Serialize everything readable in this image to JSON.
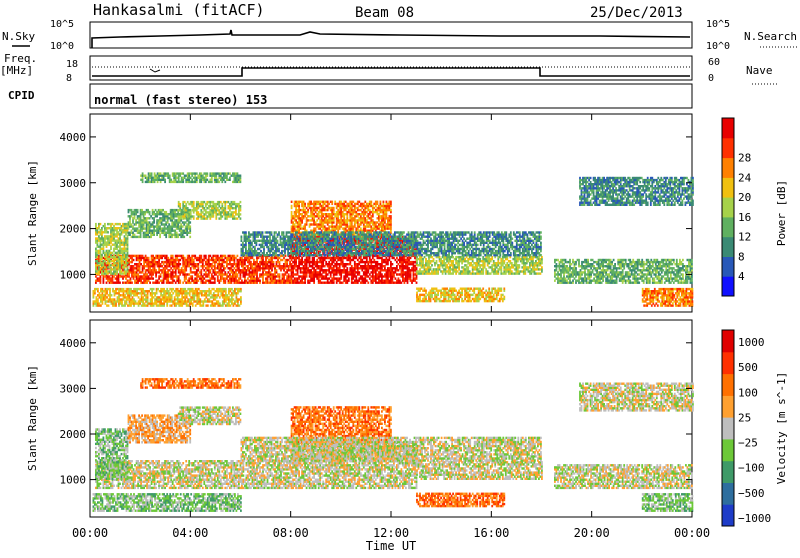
{
  "header": {
    "station": "Hankasalmi (fitACF)",
    "beam": "Beam 08",
    "date": "25/Dec/2013"
  },
  "panels": {
    "sky": {
      "left_label": "N.Sky",
      "right_label": "N.Search",
      "tick_top": "10^5",
      "tick_bottom": "10^0"
    },
    "freq": {
      "label_top": "Freq.",
      "label_unit": "[MHz]",
      "tick_top": "18",
      "tick_bottom": "8",
      "right_label": "Nave",
      "nave_top": "60",
      "nave_bottom": "0"
    },
    "cpid": {
      "label": "CPID",
      "text": "normal (fast stereo) 153"
    }
  },
  "chart_data": [
    {
      "type": "heatmap",
      "name": "power",
      "xlabel": "",
      "ylabel": "Slant Range [km]",
      "xlim": [
        0,
        24
      ],
      "ylim": [
        180,
        4500
      ],
      "x_tick_labels": [
        "00:00",
        "04:00",
        "08:00",
        "12:00",
        "16:00",
        "20:00",
        "00:00"
      ],
      "y_ticks": [
        1000,
        2000,
        3000,
        4000
      ],
      "colorbar": {
        "label": "Power [dB]",
        "ticks": [
          "4",
          "8",
          "12",
          "16",
          "20",
          "24",
          "28"
        ],
        "colors": [
          "#1010ff",
          "#2858b8",
          "#3a8a74",
          "#5fb060",
          "#a6d24a",
          "#f0c010",
          "#ff8000",
          "#ff3000",
          "#e80000"
        ]
      },
      "bands": [
        {
          "t": [
            0.2,
            8.0
          ],
          "r": [
            800,
            1400
          ],
          "level": 7
        },
        {
          "t": [
            0.2,
            1.5
          ],
          "r": [
            1000,
            2100
          ],
          "level": 4
        },
        {
          "t": [
            1.5,
            4.0
          ],
          "r": [
            1800,
            2400
          ],
          "level": 3
        },
        {
          "t": [
            3.5,
            6.0
          ],
          "r": [
            2200,
            2600
          ],
          "level": 4
        },
        {
          "t": [
            2.0,
            6.0
          ],
          "r": [
            3000,
            3200
          ],
          "level": 3
        },
        {
          "t": [
            0.1,
            6.0
          ],
          "r": [
            300,
            700
          ],
          "level": 5
        },
        {
          "t": [
            8.0,
            13.0
          ],
          "r": [
            800,
            1800
          ],
          "level": 8
        },
        {
          "t": [
            8.0,
            12.0
          ],
          "r": [
            1800,
            2600
          ],
          "level": 6
        },
        {
          "t": [
            13.0,
            18.0
          ],
          "r": [
            1000,
            1400
          ],
          "level": 4
        },
        {
          "t": [
            13.0,
            16.5
          ],
          "r": [
            400,
            700
          ],
          "level": 5
        },
        {
          "t": [
            6.0,
            18.0
          ],
          "r": [
            1400,
            1900
          ],
          "level": 2
        },
        {
          "t": [
            18.5,
            24.0
          ],
          "r": [
            800,
            1300
          ],
          "level": 3
        },
        {
          "t": [
            19.5,
            24.0
          ],
          "r": [
            2500,
            3100
          ],
          "level": 2
        },
        {
          "t": [
            22.0,
            24.0
          ],
          "r": [
            300,
            700
          ],
          "level": 6
        }
      ]
    },
    {
      "type": "heatmap",
      "name": "velocity",
      "xlabel": "Time UT",
      "ylabel": "Slant Range [km]",
      "xlim": [
        0,
        24
      ],
      "ylim": [
        180,
        4500
      ],
      "x_tick_labels": [
        "00:00",
        "04:00",
        "08:00",
        "12:00",
        "16:00",
        "20:00",
        "00:00"
      ],
      "y_ticks": [
        1000,
        2000,
        3000,
        4000
      ],
      "colorbar": {
        "label": "Velocity [m s^-1]",
        "ticks": [
          "1000",
          "500",
          "100",
          "25",
          "−25",
          "−100",
          "−500",
          "−1000"
        ],
        "colors": [
          "#1e3cc8",
          "#2e6e9e",
          "#3f9a68",
          "#6cc838",
          "#bebebe",
          "#ffa030",
          "#ff7000",
          "#ff3000",
          "#e00000"
        ]
      },
      "bands": [
        {
          "t": [
            0.2,
            8.0
          ],
          "r": [
            800,
            1400
          ],
          "level": 4
        },
        {
          "t": [
            0.2,
            1.5
          ],
          "r": [
            1000,
            2100
          ],
          "level": 3
        },
        {
          "t": [
            1.5,
            4.0
          ],
          "r": [
            1800,
            2400
          ],
          "level": 5
        },
        {
          "t": [
            3.5,
            6.0
          ],
          "r": [
            2200,
            2600
          ],
          "level": 4
        },
        {
          "t": [
            2.0,
            6.0
          ],
          "r": [
            3000,
            3200
          ],
          "level": 6
        },
        {
          "t": [
            0.1,
            6.0
          ],
          "r": [
            300,
            700
          ],
          "level": 3
        },
        {
          "t": [
            8.0,
            13.0
          ],
          "r": [
            800,
            1800
          ],
          "level": 4
        },
        {
          "t": [
            8.0,
            12.0
          ],
          "r": [
            1800,
            2600
          ],
          "level": 6
        },
        {
          "t": [
            13.0,
            18.0
          ],
          "r": [
            1000,
            1400
          ],
          "level": 4
        },
        {
          "t": [
            13.0,
            16.5
          ],
          "r": [
            400,
            700
          ],
          "level": 6
        },
        {
          "t": [
            6.0,
            18.0
          ],
          "r": [
            1400,
            1900
          ],
          "level": 4
        },
        {
          "t": [
            18.5,
            24.0
          ],
          "r": [
            800,
            1300
          ],
          "level": 4
        },
        {
          "t": [
            19.5,
            24.0
          ],
          "r": [
            2500,
            3100
          ],
          "level": 4
        },
        {
          "t": [
            22.0,
            24.0
          ],
          "r": [
            300,
            700
          ],
          "level": 3
        }
      ]
    }
  ]
}
